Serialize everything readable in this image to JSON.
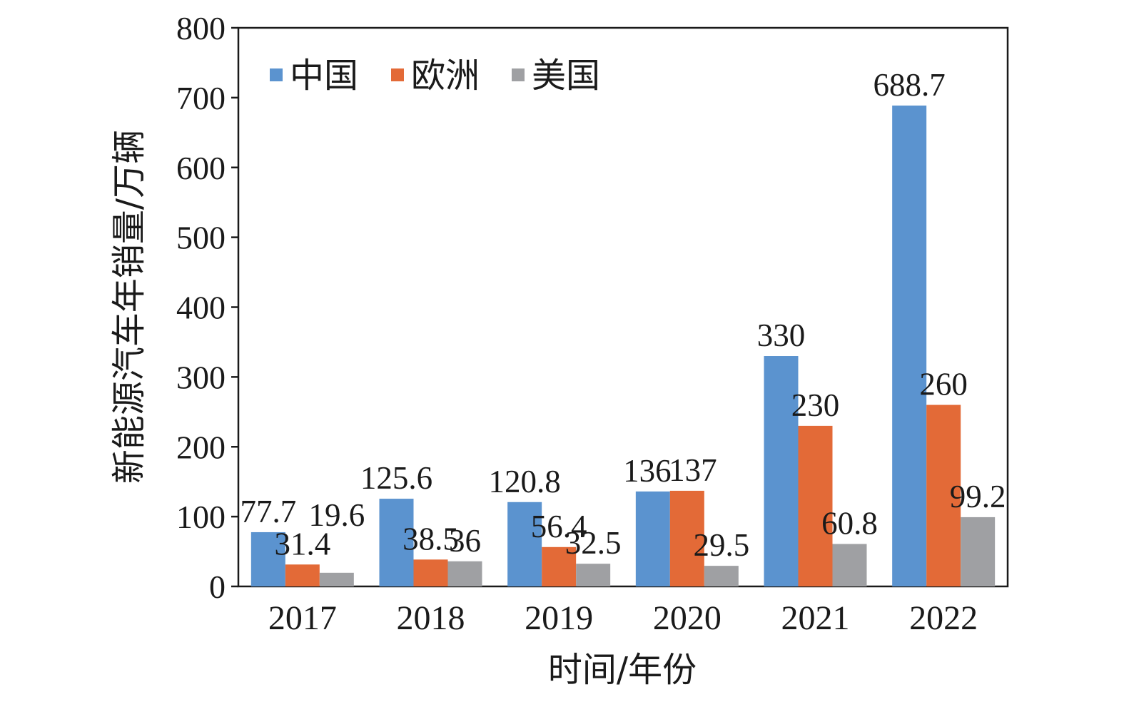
{
  "chart_data": {
    "type": "bar",
    "categories": [
      "2017",
      "2018",
      "2019",
      "2020",
      "2021",
      "2022"
    ],
    "series": [
      {
        "name": "中国",
        "color": "#5b93cf",
        "values": [
          77.7,
          125.6,
          120.8,
          136,
          330,
          688.7
        ]
      },
      {
        "name": "欧洲",
        "color": "#e36a37",
        "values": [
          31.4,
          38.5,
          56.4,
          137,
          230,
          260
        ]
      },
      {
        "name": "美国",
        "color": "#9fa0a3",
        "values": [
          19.6,
          36,
          32.5,
          29.5,
          60.8,
          99.2
        ]
      }
    ],
    "xlabel": "时间/年份",
    "ylabel": "新能源汽车年销量/万辆",
    "ylim": [
      0,
      800
    ],
    "yticks": [
      "0",
      "100",
      "200",
      "300",
      "400",
      "500",
      "600",
      "700",
      "800"
    ],
    "data_labels": [
      [
        "77.7",
        "125.6",
        "120.8",
        "136",
        "330",
        "688.7"
      ],
      [
        "31.4",
        "38.5",
        "56.4",
        "137",
        "230",
        "260"
      ],
      [
        "19.6",
        "36",
        "32.5",
        "29.5",
        "60.8",
        "99.2"
      ]
    ],
    "legend_position": "top-left",
    "grid": false
  }
}
